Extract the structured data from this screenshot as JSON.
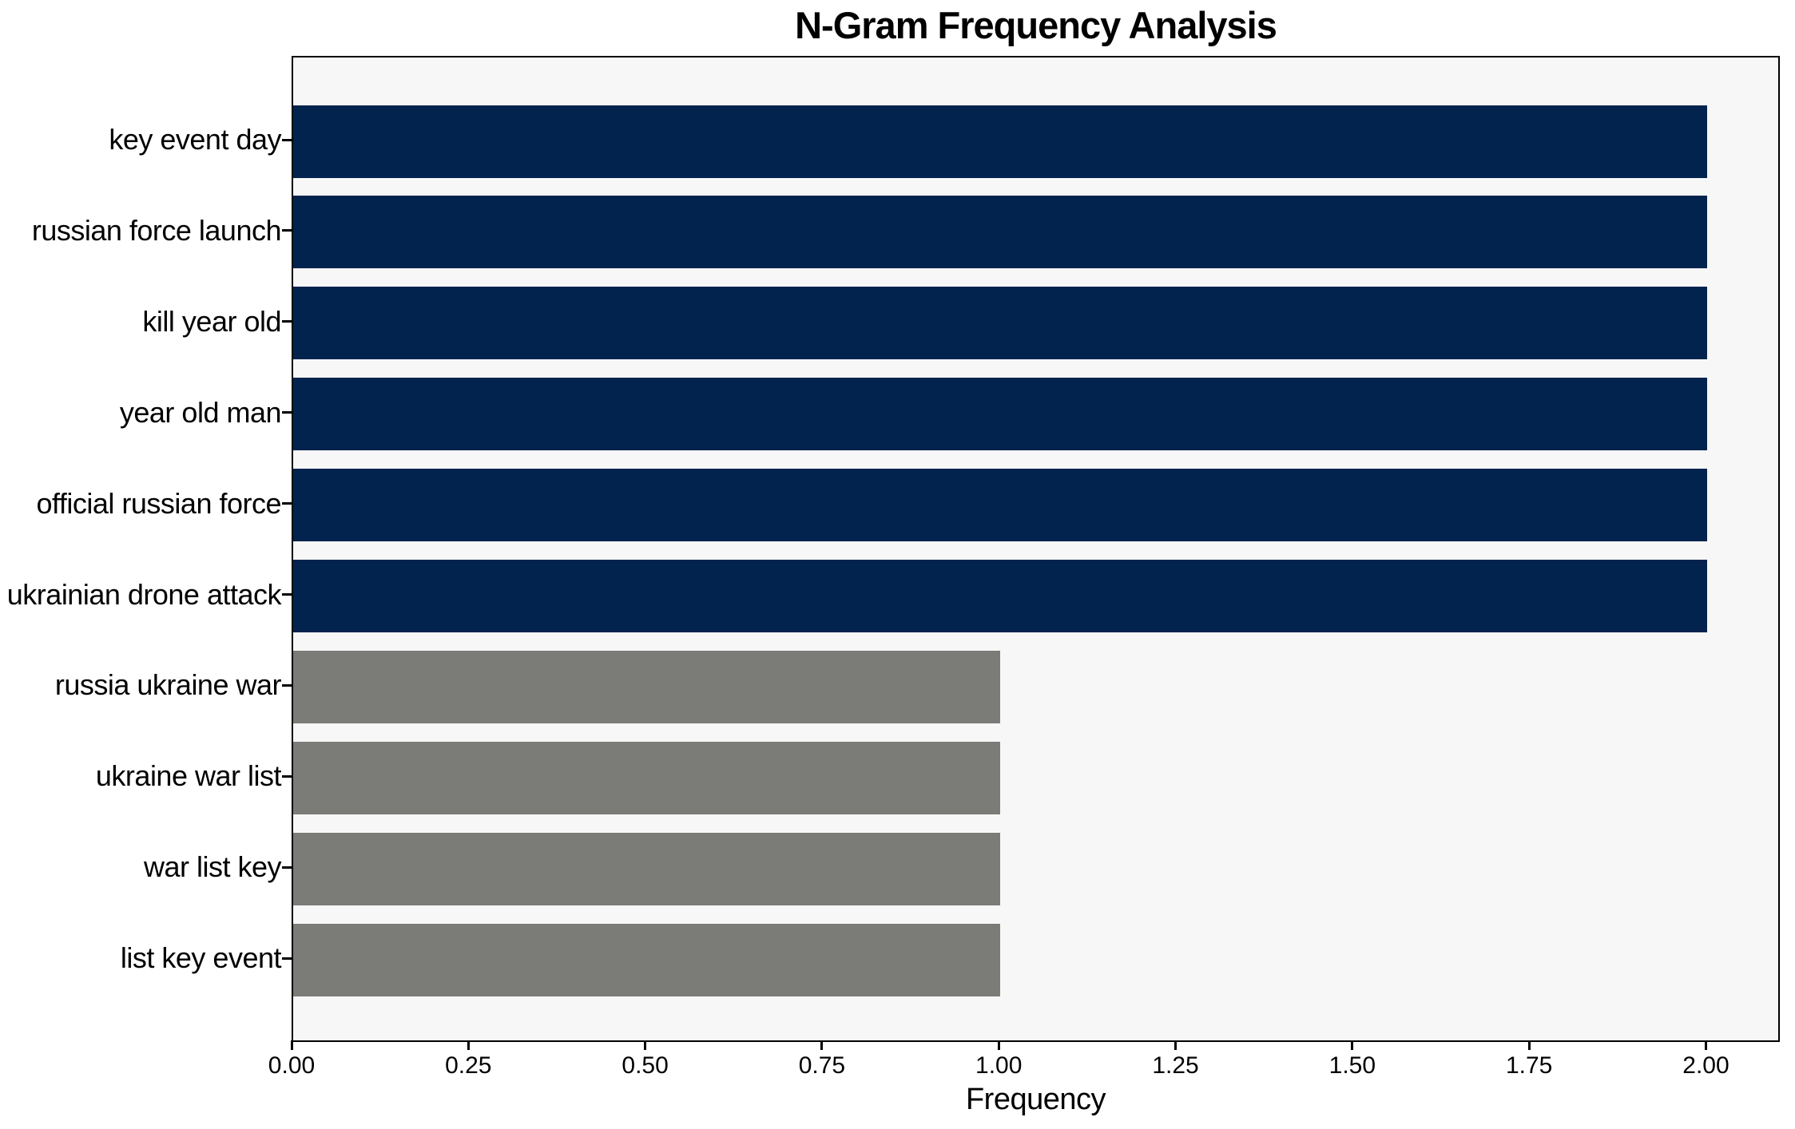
{
  "chart_data": {
    "type": "bar",
    "orientation": "horizontal",
    "title": "N-Gram Frequency Analysis",
    "xlabel": "Frequency",
    "ylabel": "",
    "categories": [
      "key event day",
      "russian force launch",
      "kill year old",
      "year old man",
      "official russian force",
      "ukrainian drone attack",
      "russia ukraine war",
      "ukraine war list",
      "war list key",
      "list key event"
    ],
    "values": [
      2,
      2,
      2,
      2,
      2,
      2,
      1,
      1,
      1,
      1
    ],
    "bar_colors": [
      "#02234e",
      "#02234e",
      "#02234e",
      "#02234e",
      "#02234e",
      "#02234e",
      "#7b7b78",
      "#7b7b78",
      "#7b7b78",
      "#7b7b78"
    ],
    "xlim": [
      0,
      2.1
    ],
    "xticks": [
      {
        "value": 0.0,
        "label": "0.00"
      },
      {
        "value": 0.25,
        "label": "0.25"
      },
      {
        "value": 0.5,
        "label": "0.50"
      },
      {
        "value": 0.75,
        "label": "0.75"
      },
      {
        "value": 1.0,
        "label": "1.00"
      },
      {
        "value": 1.25,
        "label": "1.25"
      },
      {
        "value": 1.5,
        "label": "1.50"
      },
      {
        "value": 1.75,
        "label": "1.75"
      },
      {
        "value": 2.0,
        "label": "2.00"
      }
    ],
    "grid": false,
    "legend": false,
    "plot_background": "#f7f7f7",
    "figure_background": "#ffffff",
    "spine_color": "#000000",
    "text_color": "#000000"
  }
}
